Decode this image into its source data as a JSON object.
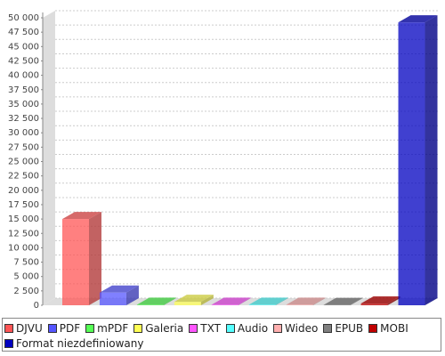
{
  "chart_data": {
    "type": "bar3d",
    "categories": [
      null
    ],
    "series": [
      {
        "name": "DJVU",
        "color": "#ff5555",
        "values": [
          15000
        ]
      },
      {
        "name": "PDF",
        "color": "#5555ff",
        "values": [
          2200
        ]
      },
      {
        "name": "mPDF",
        "color": "#55ff55",
        "values": [
          100
        ]
      },
      {
        "name": "Galeria",
        "color": "#ffff55",
        "values": [
          600
        ]
      },
      {
        "name": "TXT",
        "color": "#ff55ff",
        "values": [
          100
        ]
      },
      {
        "name": "Audio",
        "color": "#55ffff",
        "values": [
          100
        ]
      },
      {
        "name": "Wideo",
        "color": "#ffafaf",
        "values": [
          100
        ]
      },
      {
        "name": "EPUB",
        "color": "#808080",
        "values": [
          50
        ]
      },
      {
        "name": "MOBI",
        "color": "#c00000",
        "values": [
          300
        ]
      },
      {
        "name": "Format niezdefiniowany",
        "color": "#0000c0",
        "values": [
          49200
        ]
      }
    ],
    "ylim": [
      0,
      50000
    ],
    "yticks": [
      0,
      {
        "value": 2500,
        "label": "2 500"
      },
      {
        "value": 5000,
        "label": "5 000"
      },
      {
        "value": 7500,
        "label": "7 500"
      },
      {
        "value": 10000,
        "label": "10 000"
      },
      {
        "value": 12500,
        "label": "12 500"
      },
      {
        "value": 15000,
        "label": "15 000"
      },
      {
        "value": 17500,
        "label": "17 500"
      },
      {
        "value": 20000,
        "label": "20 000"
      },
      {
        "value": 22500,
        "label": "22 500"
      },
      {
        "value": 25000,
        "label": "25 000"
      },
      {
        "value": 27500,
        "label": "27 500"
      },
      {
        "value": 30000,
        "label": "30 000"
      },
      {
        "value": 32500,
        "label": "32 500"
      },
      {
        "value": 35000,
        "label": "35 000"
      },
      {
        "value": 37500,
        "label": "37 500"
      },
      {
        "value": 40000,
        "label": "40 000"
      },
      {
        "value": 42500,
        "label": "42 500"
      },
      {
        "value": 45000,
        "label": "45 000"
      },
      {
        "value": 47500,
        "label": "47 500"
      },
      {
        "value": 50000,
        "label": "50 000"
      }
    ],
    "grid": true
  }
}
